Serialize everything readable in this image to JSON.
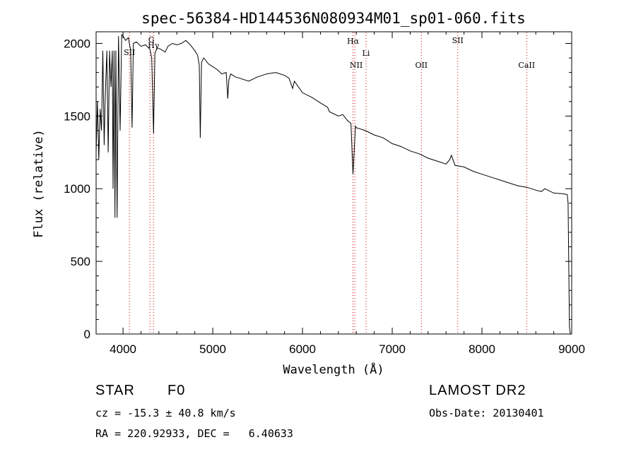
{
  "chart_data": {
    "type": "line",
    "title": "spec-56384-HD144536N080934M01_sp01-060.fits",
    "xlabel": "Wavelength (Å)",
    "ylabel": "Flux (relative)",
    "xlim": [
      3700,
      9000
    ],
    "ylim": [
      0,
      2080
    ],
    "x_ticks": [
      4000,
      5000,
      6000,
      7000,
      8000,
      9000
    ],
    "y_ticks": [
      0,
      500,
      1000,
      1500,
      2000
    ],
    "grid": false,
    "series": [
      {
        "x": [
          3700,
          3715,
          3730,
          3745,
          3760,
          3775,
          3790,
          3800,
          3820,
          3835,
          3850,
          3865,
          3880,
          3889,
          3900,
          3910,
          3920,
          3934,
          3950,
          3968,
          3985,
          4000,
          4030,
          4060,
          4085,
          4101,
          4115,
          4150,
          4200,
          4250,
          4300,
          4320,
          4340,
          4355,
          4380,
          4420,
          4470,
          4500,
          4550,
          4600,
          4650,
          4700,
          4750,
          4800,
          4830,
          4850,
          4861,
          4875,
          4900,
          4950,
          5000,
          5050,
          5100,
          5150,
          5167,
          5180,
          5200,
          5250,
          5300,
          5400,
          5500,
          5600,
          5700,
          5800,
          5850,
          5890,
          5910,
          6000,
          6100,
          6200,
          6280,
          6300,
          6400,
          6450,
          6500,
          6540,
          6563,
          6590,
          6600,
          6700,
          6800,
          6900,
          7000,
          7100,
          7200,
          7300,
          7400,
          7500,
          7600,
          7640,
          7660,
          7700,
          7800,
          7900,
          8000,
          8100,
          8200,
          8300,
          8400,
          8500,
          8550,
          8600,
          8662,
          8700,
          8800,
          8900,
          8950,
          8960,
          8975,
          8985
        ],
        "values": [
          1250,
          1600,
          1200,
          1550,
          1400,
          1950,
          1300,
          1600,
          1950,
          1250,
          1950,
          1700,
          1950,
          1000,
          1950,
          800,
          1950,
          800,
          2050,
          1400,
          2060,
          2050,
          2020,
          2040,
          1950,
          1420,
          2000,
          2010,
          1980,
          1990,
          1960,
          1900,
          1380,
          1930,
          1970,
          1960,
          1940,
          1980,
          2000,
          1990,
          2000,
          2020,
          1990,
          1950,
          1920,
          1850,
          1350,
          1870,
          1900,
          1860,
          1840,
          1820,
          1790,
          1800,
          1620,
          1750,
          1790,
          1770,
          1760,
          1740,
          1770,
          1790,
          1800,
          1780,
          1760,
          1690,
          1740,
          1660,
          1630,
          1590,
          1560,
          1530,
          1500,
          1510,
          1470,
          1450,
          1100,
          1430,
          1420,
          1400,
          1370,
          1350,
          1310,
          1290,
          1260,
          1240,
          1210,
          1190,
          1170,
          1200,
          1230,
          1160,
          1150,
          1120,
          1100,
          1080,
          1060,
          1040,
          1020,
          1010,
          1000,
          990,
          980,
          1000,
          970,
          965,
          960,
          900,
          50,
          0
        ]
      }
    ],
    "lines": [
      {
        "name": "SII",
        "wavelength": 4072
      },
      {
        "name": "G",
        "wavelength": 4300
      },
      {
        "name": "Hγ",
        "wavelength": 4340
      },
      {
        "name": "Hα",
        "wavelength": 6563
      },
      {
        "name": "NII",
        "wavelength": 6583
      },
      {
        "name": "Li",
        "wavelength": 6708
      },
      {
        "name": "OII",
        "wavelength": 7325
      },
      {
        "name": "SII",
        "wavelength": 7730
      },
      {
        "name": "CaII",
        "wavelength": 8498
      }
    ]
  },
  "info": {
    "object_class": "STAR",
    "subclass": "F0",
    "survey": "LAMOST DR2",
    "redshift": "cz = -15.3 ± 40.8 km/s",
    "obs_date": "Obs-Date: 20130401",
    "coords": "RA = 220.92933, DEC =   6.40633"
  },
  "colors": {
    "spectrum": "#000000",
    "line_markers": "#cc0000",
    "axes": "#000000"
  }
}
